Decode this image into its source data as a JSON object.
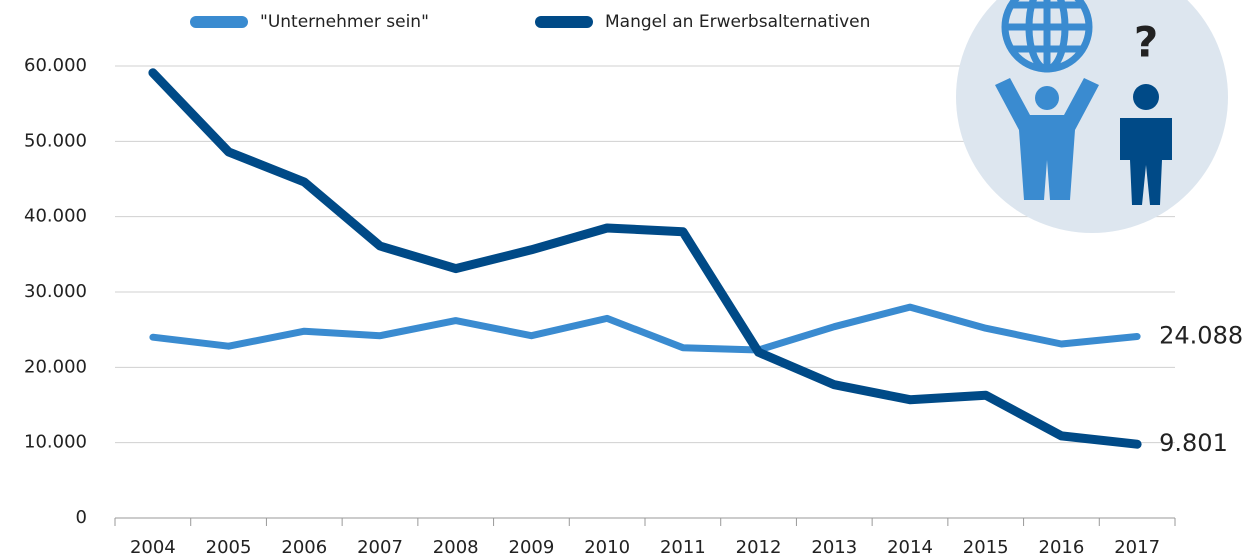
{
  "chart_data": {
    "type": "line",
    "categories": [
      "2004",
      "2005",
      "2006",
      "2007",
      "2008",
      "2009",
      "2010",
      "2011",
      "2012",
      "2013",
      "2014",
      "2015",
      "2016",
      "2017"
    ],
    "series": [
      {
        "name": "\"Unternehmer sein\"",
        "color": "#3a8bd0",
        "values": [
          24000,
          22800,
          24800,
          24200,
          26200,
          24200,
          26500,
          22600,
          22300,
          25400,
          28000,
          25200,
          23100,
          24088
        ],
        "value_labels": [
          null,
          null,
          null,
          null,
          null,
          null,
          null,
          null,
          null,
          null,
          null,
          null,
          null,
          "24.088"
        ]
      },
      {
        "name": "Mangel an Erwerbsalternativen",
        "color": "#004a87",
        "values": [
          59100,
          48600,
          44600,
          36100,
          33100,
          35600,
          38500,
          38000,
          22000,
          17700,
          15700,
          16300,
          10900,
          9801
        ],
        "value_labels": [
          null,
          null,
          null,
          null,
          null,
          null,
          null,
          null,
          null,
          null,
          null,
          null,
          null,
          "9.801"
        ]
      }
    ],
    "ylim": [
      0,
      60000
    ],
    "yticks": [
      0,
      {
        "value": 10000,
        "label": "10.000"
      },
      {
        "value": 20000,
        "label": "20.000"
      },
      {
        "value": 30000,
        "label": "30.000"
      },
      {
        "value": 40000,
        "label": "40.000"
      },
      {
        "value": 50000,
        "label": "50.000"
      },
      {
        "value": 60000,
        "label": "60.000"
      }
    ],
    "grid": true
  }
}
